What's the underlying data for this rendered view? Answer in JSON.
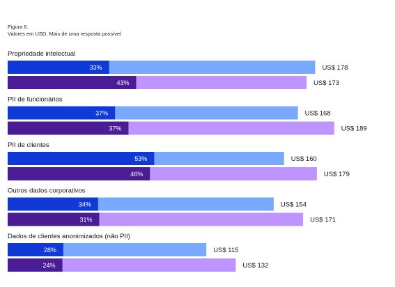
{
  "figure": {
    "number": "Figura 6.",
    "subtitle": "Valores em USD. Mais de uma resposta possível"
  },
  "chart_data": {
    "type": "bar",
    "orientation": "horizontal",
    "colors": {
      "series1_share": "#0f3ad8",
      "series1_rest": "#78a9ff",
      "series2_share": "#4a1d96",
      "series2_rest": "#be95ff"
    },
    "groups": [
      {
        "category": "Propriedade intelectual",
        "bars": [
          {
            "series": 1,
            "percent": 33,
            "percent_label": "33%",
            "value": 178,
            "value_label": "US$ 178"
          },
          {
            "series": 2,
            "percent": 43,
            "percent_label": "43%",
            "value": 173,
            "value_label": "US$ 173"
          }
        ]
      },
      {
        "category": "PII de funcionários",
        "bars": [
          {
            "series": 1,
            "percent": 37,
            "percent_label": "37%",
            "value": 168,
            "value_label": "US$ 168"
          },
          {
            "series": 2,
            "percent": 37,
            "percent_label": "37%",
            "value": 189,
            "value_label": "US$ 189"
          }
        ]
      },
      {
        "category": "PII de clientes",
        "bars": [
          {
            "series": 1,
            "percent": 53,
            "percent_label": "53%",
            "value": 160,
            "value_label": "US$ 160"
          },
          {
            "series": 2,
            "percent": 46,
            "percent_label": "46%",
            "value": 179,
            "value_label": "US$ 179"
          }
        ]
      },
      {
        "category": "Outros dados corporativos",
        "bars": [
          {
            "series": 1,
            "percent": 34,
            "percent_label": "34%",
            "value": 154,
            "value_label": "US$ 154"
          },
          {
            "series": 2,
            "percent": 31,
            "percent_label": "31%",
            "value": 171,
            "value_label": "US$ 171"
          }
        ]
      },
      {
        "category": "Dados de clientes anonimizados (não PII)",
        "bars": [
          {
            "series": 1,
            "percent": 28,
            "percent_label": "28%",
            "value": 115,
            "value_label": "US$ 115"
          },
          {
            "series": 2,
            "percent": 24,
            "percent_label": "24%",
            "value": 132,
            "value_label": "US$ 132"
          }
        ]
      }
    ]
  }
}
